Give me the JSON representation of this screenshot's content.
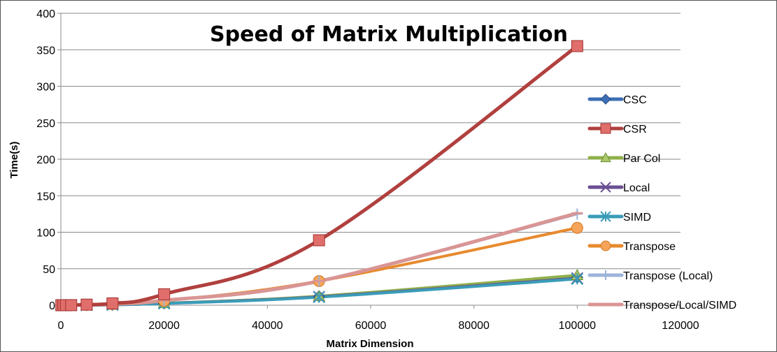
{
  "chart_data": {
    "type": "line",
    "title": "Speed of Matrix Multiplication",
    "xlabel": "Matrix Dimension",
    "ylabel": "Time(s)",
    "xlim": [
      0,
      120000
    ],
    "ylim": [
      0,
      400
    ],
    "xticks": [
      "0",
      "20000",
      "40000",
      "60000",
      "80000",
      "100000",
      "120000"
    ],
    "yticks": [
      "0",
      "50",
      "100",
      "150",
      "200",
      "250",
      "300",
      "350",
      "400"
    ],
    "grid": "horizontal",
    "legend": "right",
    "x": [
      100,
      500,
      1000,
      2000,
      5000,
      10000,
      20000,
      50000,
      100000
    ],
    "series": [
      {
        "name": "CSC",
        "color": "#3d6fb4",
        "marker": "diamond",
        "values": [
          0,
          0,
          0,
          0,
          0.2,
          0.6,
          2.5,
          12,
          38
        ]
      },
      {
        "name": "CSR",
        "color": "#b0403e",
        "marker": "square",
        "values": [
          0,
          0,
          0,
          0.1,
          0.8,
          2.5,
          15,
          89,
          355
        ]
      },
      {
        "name": "Par Col",
        "color": "#8fb04a",
        "marker": "triangle",
        "values": [
          0,
          0,
          0,
          0,
          0.2,
          0.6,
          2.7,
          12.5,
          41
        ]
      },
      {
        "name": "Local",
        "color": "#6b4f93",
        "marker": "x",
        "values": [
          0,
          0,
          0,
          0,
          0.2,
          0.6,
          2.5,
          11.5,
          37
        ]
      },
      {
        "name": "SIMD",
        "color": "#3a9cb8",
        "marker": "star",
        "values": [
          0,
          0,
          0,
          0,
          0.2,
          0.6,
          2.4,
          11,
          36
        ]
      },
      {
        "name": "Transpose",
        "color": "#e88a2d",
        "marker": "circle",
        "values": [
          0,
          0,
          0,
          0,
          0.5,
          1.5,
          6,
          33,
          106
        ]
      },
      {
        "name": "Transpose (Local)",
        "color": "#9db4da",
        "marker": "plus",
        "values": [
          0,
          0,
          0,
          0,
          0.5,
          1.6,
          6.5,
          33,
          125
        ]
      },
      {
        "name": "Transpose/Local/SIMD",
        "color": "#d99594",
        "marker": "dash",
        "values": [
          0,
          0,
          0,
          0,
          0.5,
          1.6,
          6.5,
          33,
          126
        ]
      }
    ]
  }
}
